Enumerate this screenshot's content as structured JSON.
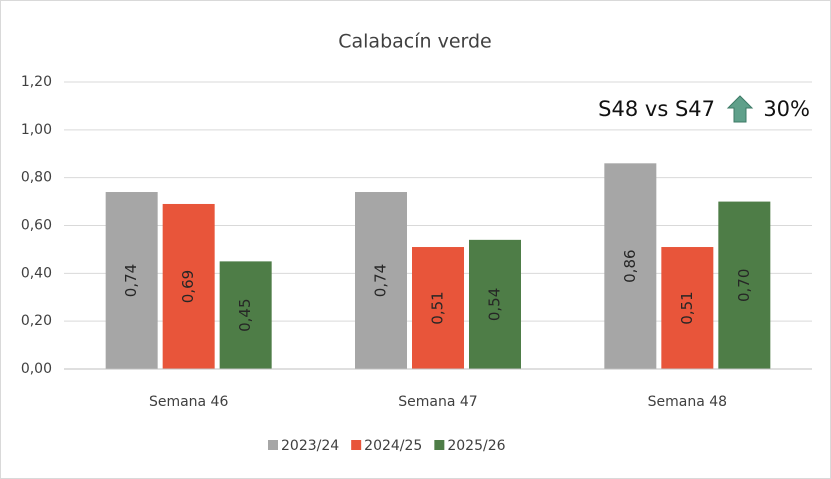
{
  "chart_data": {
    "type": "bar",
    "title": "Calabacín verde",
    "categories": [
      "Semana 46",
      "Semana 47",
      "Semana 48"
    ],
    "series": [
      {
        "name": "2023/24",
        "color": "#a6a6a6",
        "values": [
          0.74,
          0.74,
          0.86
        ],
        "value_labels": [
          "0,74",
          "0,74",
          "0,86"
        ]
      },
      {
        "name": "2024/25",
        "color": "#e8553a",
        "values": [
          0.69,
          0.51,
          0.51
        ],
        "value_labels": [
          "0,69",
          "0,51",
          "0,51"
        ]
      },
      {
        "name": "2025/26",
        "color": "#4e7d47",
        "values": [
          0.45,
          0.54,
          0.7
        ],
        "value_labels": [
          "0,45",
          "0,54",
          "0,70"
        ]
      }
    ],
    "ylim": [
      0,
      1.2
    ],
    "yticks": [
      {
        "value": 0,
        "label": "0,00"
      },
      {
        "value": 0.2,
        "label": "0,20"
      },
      {
        "value": 0.4,
        "label": "0,40"
      },
      {
        "value": 0.6,
        "label": "0,60"
      },
      {
        "value": 0.8,
        "label": "0,80"
      },
      {
        "value": 1.0,
        "label": "1,00"
      },
      {
        "value": 1.2,
        "label": "1,20"
      }
    ],
    "grid": true,
    "legend": "bottom",
    "annotation": {
      "text": "S48 vs S47",
      "change": "30%"
    }
  }
}
